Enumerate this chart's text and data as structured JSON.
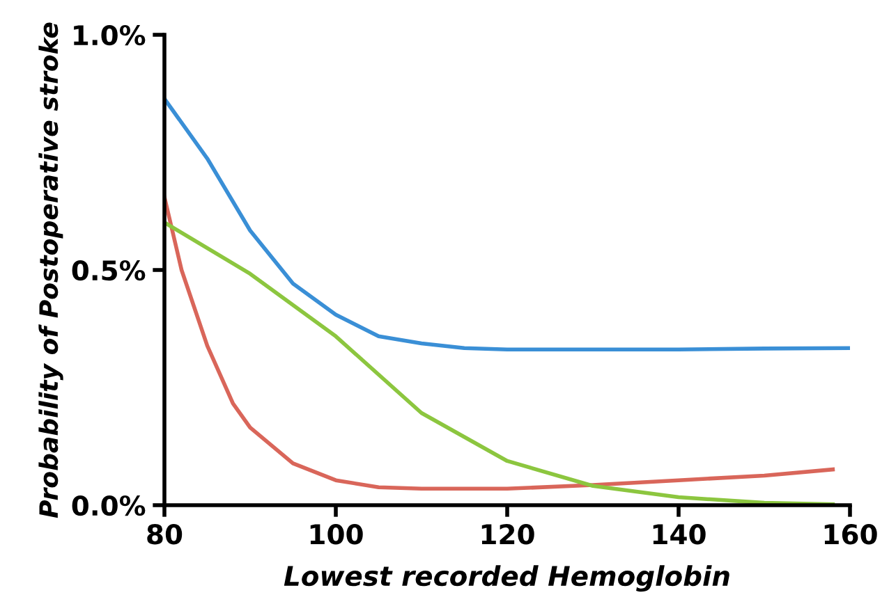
{
  "chart_data": {
    "type": "line",
    "xlabel": "Lowest recorded Hemoglobin",
    "ylabel": "Probability of Postoperative stroke",
    "xlim": [
      80,
      160
    ],
    "xticks": [
      80,
      100,
      120,
      140,
      160
    ],
    "ylim": [
      0,
      1.0
    ],
    "yticks": [
      {
        "value": 0,
        "label": "0.0%"
      },
      {
        "value": 0.5,
        "label": "0.5%"
      },
      {
        "value": 1.0,
        "label": "1.0%"
      }
    ],
    "grid": false,
    "legend": false,
    "marker": "none",
    "line_style": "solid",
    "series": [
      {
        "color": "#3a8fd6",
        "x": [
          80,
          85,
          90,
          95,
          100,
          105,
          110,
          115,
          120,
          130,
          140,
          150,
          160
        ],
        "values": [
          0.864,
          0.737,
          0.584,
          0.471,
          0.405,
          0.359,
          0.344,
          0.334,
          0.331,
          0.331,
          0.331,
          0.333,
          0.334
        ]
      },
      {
        "color": "#d9665a",
        "x": [
          80,
          82,
          85,
          88,
          90,
          95,
          100,
          105,
          110,
          120,
          130,
          140,
          150,
          158
        ],
        "values": [
          0.655,
          0.5,
          0.339,
          0.216,
          0.165,
          0.089,
          0.053,
          0.038,
          0.035,
          0.035,
          0.043,
          0.053,
          0.063,
          0.076
        ]
      },
      {
        "color": "#8cc63f",
        "x": [
          80,
          90,
          100,
          110,
          120,
          130,
          140,
          150,
          158
        ],
        "values": [
          0.601,
          0.492,
          0.359,
          0.196,
          0.094,
          0.041,
          0.017,
          0.005,
          0.002
        ]
      }
    ]
  }
}
